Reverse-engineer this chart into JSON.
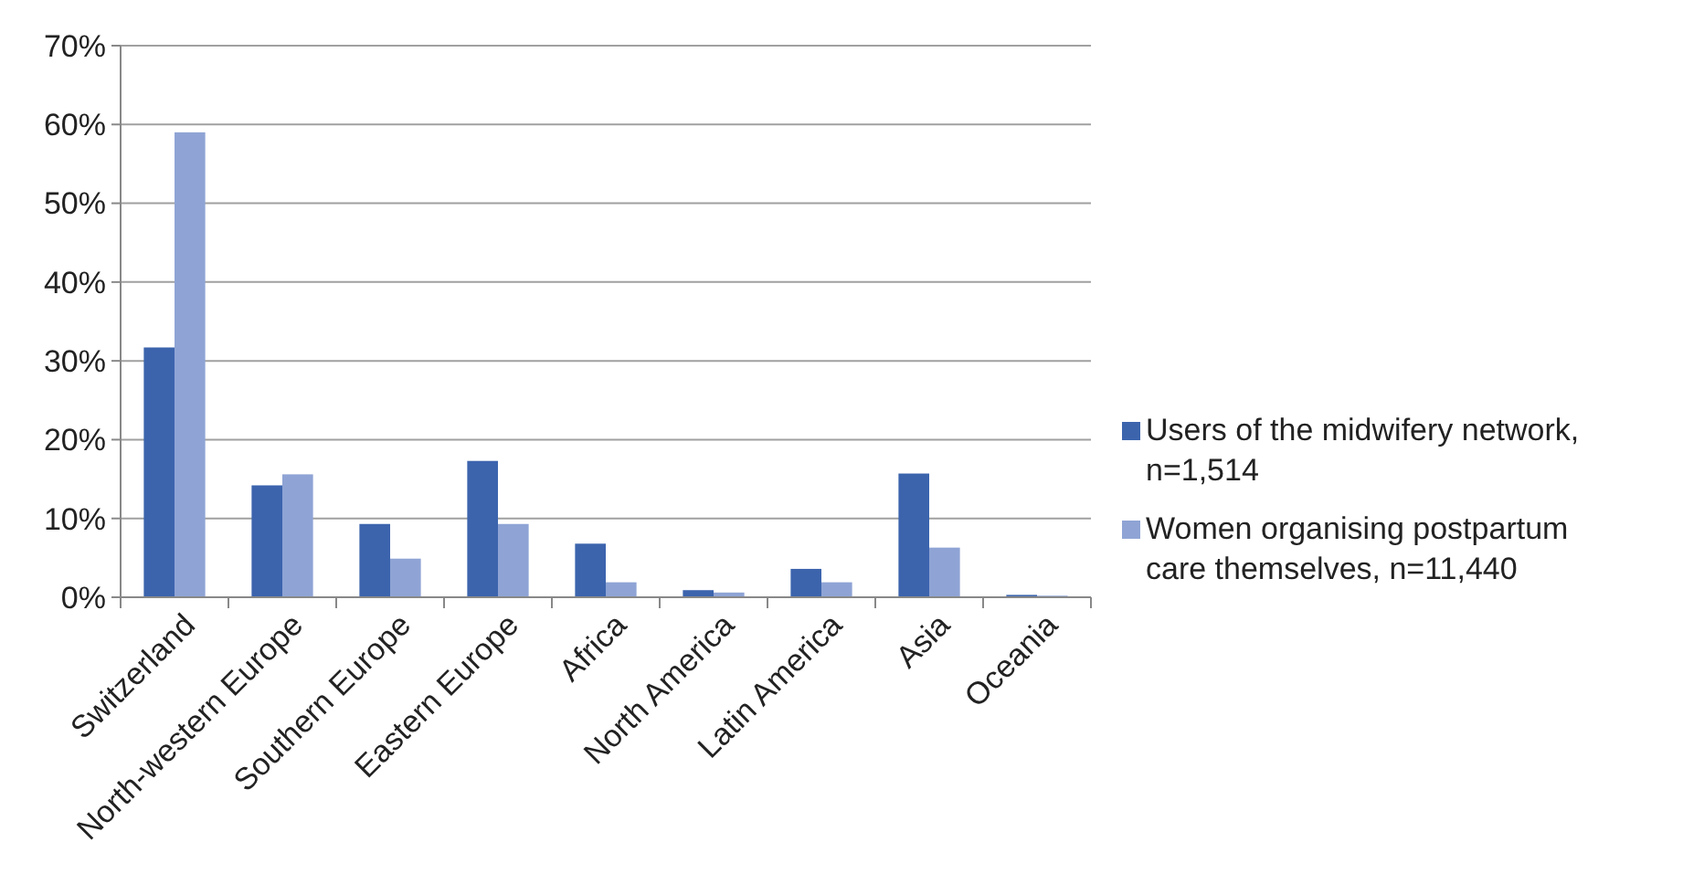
{
  "chart_data": {
    "type": "bar",
    "categories": [
      "Switzerland",
      "North-western Europe",
      "Southern Europe",
      "Eastern Europe",
      "Africa",
      "North America",
      "Latin America",
      "Asia",
      "Oceania"
    ],
    "series": [
      {
        "name": "Users of the midwifery network, n=1,514",
        "color": "#3c64ad",
        "values": [
          31.7,
          14.2,
          9.3,
          17.3,
          6.8,
          0.9,
          3.6,
          15.7,
          0.3
        ]
      },
      {
        "name": "Women organising postpartum care themselves, n=11,440",
        "color": "#8fa4d5",
        "values": [
          59.0,
          15.6,
          4.9,
          9.3,
          1.9,
          0.6,
          1.9,
          6.3,
          0.2
        ]
      }
    ],
    "ylim": [
      0,
      70
    ],
    "yticks": [
      {
        "value": 0,
        "label": "0%"
      },
      {
        "value": 10,
        "label": "10%"
      },
      {
        "value": 20,
        "label": "20%"
      },
      {
        "value": 30,
        "label": "30%"
      },
      {
        "value": 40,
        "label": "40%"
      },
      {
        "value": 50,
        "label": "50%"
      },
      {
        "value": 60,
        "label": "60%"
      },
      {
        "value": 70,
        "label": "70%"
      }
    ],
    "grid": "y",
    "legend": "right"
  }
}
